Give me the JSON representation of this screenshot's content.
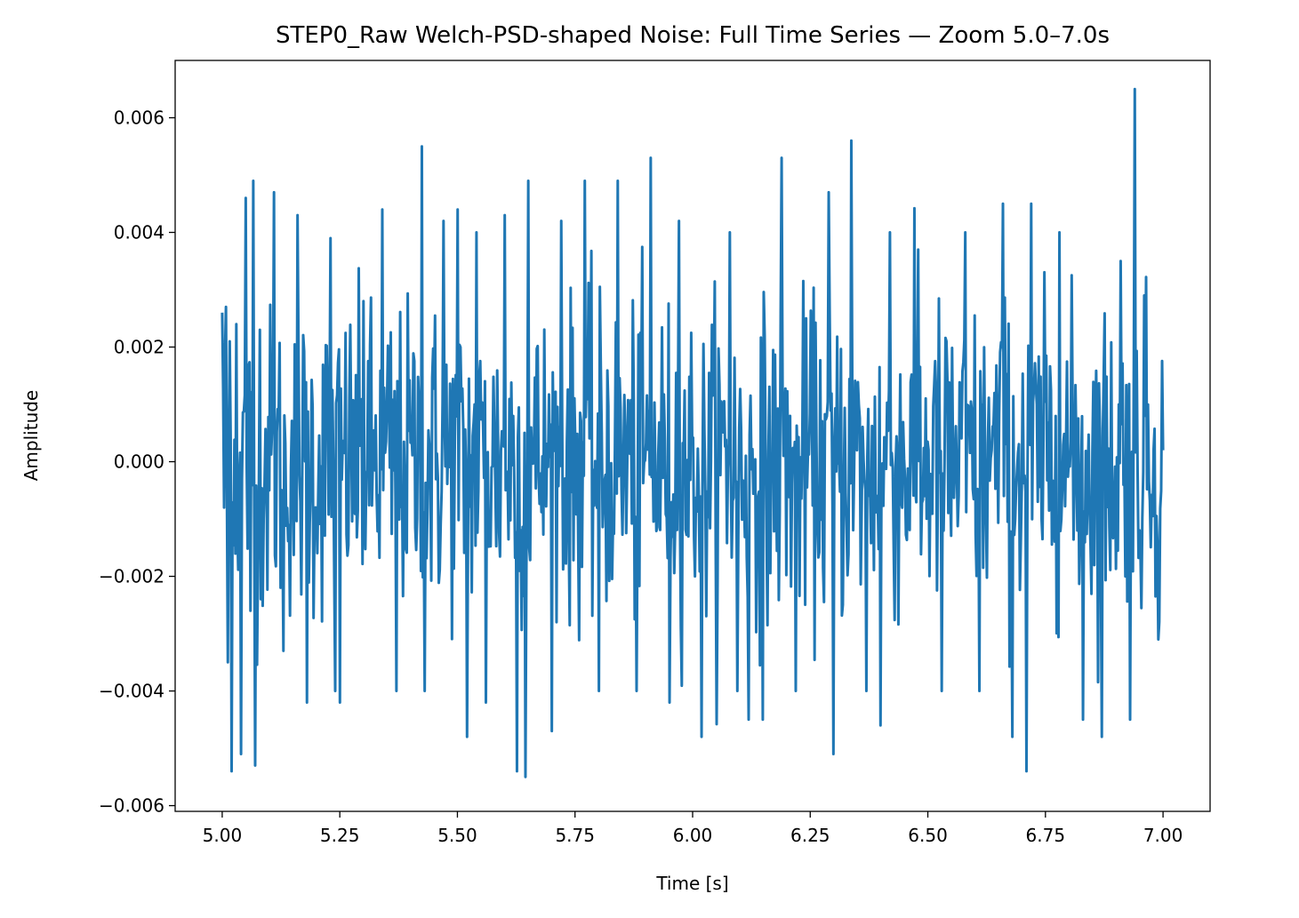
{
  "chart_data": {
    "type": "line",
    "title": "STEP0_Raw Welch-PSD-shaped Noise: Full Time Series — Zoom 5.0–7.0s",
    "xlabel": "Time [s]",
    "ylabel": "Amplitude",
    "xlim": [
      4.9,
      7.1
    ],
    "ylim": [
      -0.0061,
      0.007
    ],
    "x_ticks": [
      5.0,
      5.25,
      5.5,
      5.75,
      6.0,
      6.25,
      6.5,
      6.75,
      7.0
    ],
    "x_tick_labels": [
      "5.00",
      "5.25",
      "5.50",
      "5.75",
      "6.00",
      "6.25",
      "6.50",
      "6.75",
      "7.00"
    ],
    "y_ticks": [
      -0.006,
      -0.004,
      -0.002,
      0.0,
      0.002,
      0.004,
      0.006
    ],
    "y_tick_labels": [
      "−0.006",
      "−0.004",
      "−0.002",
      "0.000",
      "0.002",
      "0.004",
      "0.006"
    ],
    "grid": false,
    "line_color": "#1f77b4",
    "series": [
      {
        "x_start": 5.0,
        "x_end": 7.0,
        "num_points": 1000,
        "values_note_points": [
          [
            5.0,
            0.0026
          ],
          [
            5.004,
            -0.0008
          ],
          [
            5.008,
            0.0027
          ],
          [
            5.012,
            -0.0035
          ],
          [
            5.016,
            0.0021
          ],
          [
            5.02,
            -0.0054
          ],
          [
            5.03,
            0.0024
          ],
          [
            5.04,
            -0.0051
          ],
          [
            5.05,
            0.0046
          ],
          [
            5.06,
            -0.0026
          ],
          [
            5.066,
            0.0049
          ],
          [
            5.07,
            -0.0053
          ],
          [
            5.08,
            0.0023
          ],
          [
            5.11,
            0.0047
          ],
          [
            5.13,
            -0.0033
          ],
          [
            5.16,
            0.0043
          ],
          [
            5.18,
            -0.0042
          ],
          [
            5.23,
            0.0039
          ],
          [
            5.24,
            -0.004
          ],
          [
            5.25,
            -0.0042
          ],
          [
            5.3,
            0.0028
          ],
          [
            5.34,
            0.0044
          ],
          [
            5.37,
            -0.004
          ],
          [
            5.425,
            0.0055
          ],
          [
            5.43,
            -0.004
          ],
          [
            5.47,
            0.0042
          ],
          [
            5.5,
            0.0044
          ],
          [
            5.52,
            -0.0048
          ],
          [
            5.54,
            0.004
          ],
          [
            5.56,
            -0.0042
          ],
          [
            5.6,
            0.0043
          ],
          [
            5.626,
            -0.0054
          ],
          [
            5.645,
            -0.0055
          ],
          [
            5.65,
            0.0049
          ],
          [
            5.72,
            0.0042
          ],
          [
            5.77,
            0.0049
          ],
          [
            5.8,
            -0.004
          ],
          [
            5.84,
            0.0049
          ],
          [
            5.88,
            -0.004
          ],
          [
            5.91,
            0.0053
          ],
          [
            5.95,
            -0.0042
          ],
          [
            5.97,
            0.0042
          ],
          [
            6.02,
            -0.0048
          ],
          [
            6.08,
            0.004
          ],
          [
            6.095,
            -0.004
          ],
          [
            6.12,
            -0.0045
          ],
          [
            6.15,
            -0.0045
          ],
          [
            6.19,
            0.0053
          ],
          [
            6.22,
            -0.004
          ],
          [
            6.29,
            0.0047
          ],
          [
            6.3,
            -0.0051
          ],
          [
            6.338,
            0.0056
          ],
          [
            6.37,
            -0.004
          ],
          [
            6.4,
            -0.0046
          ],
          [
            6.42,
            0.004
          ],
          [
            6.48,
            0.0037
          ],
          [
            6.53,
            -0.004
          ],
          [
            6.58,
            0.004
          ],
          [
            6.61,
            -0.004
          ],
          [
            6.66,
            0.0045
          ],
          [
            6.68,
            -0.0048
          ],
          [
            6.71,
            -0.0054
          ],
          [
            6.72,
            0.0045
          ],
          [
            6.78,
            0.004
          ],
          [
            6.83,
            -0.0045
          ],
          [
            6.87,
            -0.0048
          ],
          [
            6.91,
            0.0035
          ],
          [
            6.93,
            -0.0045
          ],
          [
            6.94,
            0.0065
          ],
          [
            6.96,
            0.0029
          ],
          [
            6.99,
            -0.0031
          ],
          [
            7.0,
            0.0002
          ]
        ]
      }
    ]
  }
}
